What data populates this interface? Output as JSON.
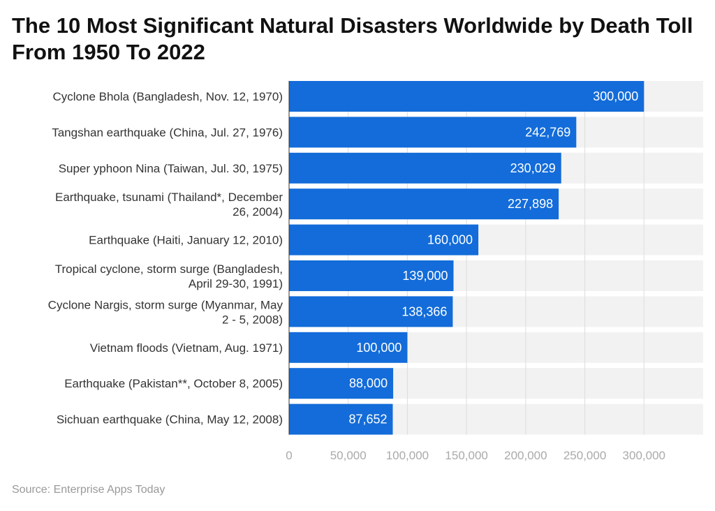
{
  "chart_data": {
    "type": "bar",
    "orientation": "horizontal",
    "title": "The 10 Most Significant Natural Disasters Worldwide by Death Toll From 1950 To 2022",
    "xlabel": "",
    "ylabel": "",
    "categories": [
      "Cyclone Bhola (Bangladesh, Nov. 12, 1970)",
      "Tangshan earthquake (China, Jul. 27, 1976)",
      "Super yphoon Nina (Taiwan, Jul. 30, 1975)",
      "Earthquake, tsunami (Thailand*, December 26, 2004)",
      "Earthquake (Haiti, January 12, 2010)",
      "Tropical cyclone, storm surge (Bangladesh, April 29-30, 1991)",
      "Cyclone Nargis, storm surge (Myanmar, May 2 - 5, 2008)",
      "Vietnam floods (Vietnam, Aug. 1971)",
      "Earthquake (Pakistan**, October 8, 2005)",
      "Sichuan earthquake (China, May 12, 2008)"
    ],
    "category_lines": [
      [
        "Cyclone Bhola (Bangladesh, Nov. 12, 1970)"
      ],
      [
        "Tangshan earthquake (China, Jul. 27, 1976)"
      ],
      [
        "Super yphoon Nina (Taiwan, Jul. 30, 1975)"
      ],
      [
        "Earthquake, tsunami (Thailand*, December",
        "26, 2004)"
      ],
      [
        "Earthquake (Haiti, January 12, 2010)"
      ],
      [
        "Tropical cyclone, storm surge (Bangladesh,",
        "April 29-30, 1991)"
      ],
      [
        "Cyclone Nargis, storm surge (Myanmar, May",
        "2 - 5, 2008)"
      ],
      [
        "Vietnam floods (Vietnam, Aug. 1971)"
      ],
      [
        "Earthquake (Pakistan**, October 8, 2005)"
      ],
      [
        "Sichuan earthquake (China, May 12, 2008)"
      ]
    ],
    "values": [
      300000,
      242769,
      230029,
      227898,
      160000,
      139000,
      138366,
      100000,
      88000,
      87652
    ],
    "value_labels": [
      "300,000",
      "242,769",
      "230,029",
      "227,898",
      "160,000",
      "139,000",
      "138,366",
      "100,000",
      "88,000",
      "87,652"
    ],
    "xlim": [
      0,
      350000
    ],
    "xticks": [
      0,
      50000,
      100000,
      150000,
      200000,
      250000,
      300000
    ],
    "xtick_labels": [
      "0",
      "50,000",
      "100,000",
      "150,000",
      "200,000",
      "250,000",
      "300,000"
    ],
    "grid": true,
    "legend": "none",
    "colors": {
      "bar": "#136cd9",
      "band": "#f2f2f2",
      "grid": "#dddddd"
    }
  },
  "source": "Source: Enterprise Apps Today"
}
